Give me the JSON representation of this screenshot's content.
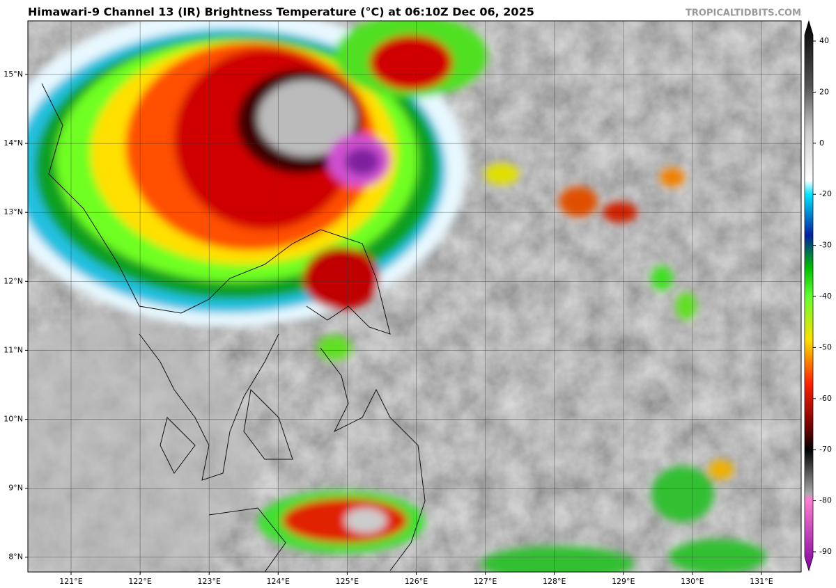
{
  "header": {
    "title": "Himawari-9 Channel 13 (IR) Brightness Temperature (°C) at 06:10Z Dec 06, 2025",
    "credit": "TROPICALTIDBITS.COM"
  },
  "map": {
    "lat_labels": [
      "15°N",
      "14°N",
      "13°N",
      "12°N",
      "11°N",
      "10°N",
      "9°N",
      "8°N"
    ],
    "lon_labels": [
      "121°E",
      "122°E",
      "123°E",
      "124°E",
      "125°E",
      "126°E",
      "127°E",
      "128°E",
      "129°E",
      "130°E",
      "131°E"
    ]
  },
  "colorbar": {
    "ticks": [
      40,
      20,
      0,
      -20,
      -30,
      -40,
      -50,
      -60,
      -70,
      -80,
      -90
    ]
  }
}
